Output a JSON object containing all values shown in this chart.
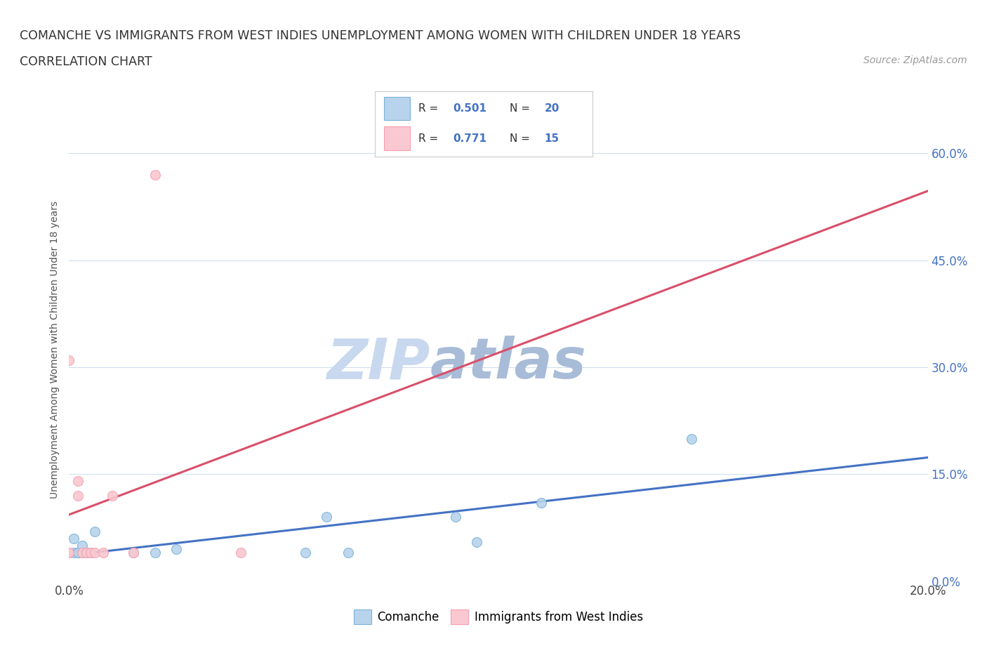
{
  "title_line1": "COMANCHE VS IMMIGRANTS FROM WEST INDIES UNEMPLOYMENT AMONG WOMEN WITH CHILDREN UNDER 18 YEARS",
  "title_line2": "CORRELATION CHART",
  "source_text": "Source: ZipAtlas.com",
  "ylabel": "Unemployment Among Women with Children Under 18 years",
  "xmin": 0.0,
  "xmax": 0.2,
  "ymin": 0.0,
  "ymax": 0.65,
  "yticks": [
    0.0,
    0.15,
    0.3,
    0.45,
    0.6
  ],
  "ytick_labels_right": [
    "0.0%",
    "15.0%",
    "30.0%",
    "45.0%",
    "60.0%"
  ],
  "xticks": [
    0.0,
    0.04,
    0.08,
    0.12,
    0.16,
    0.2
  ],
  "xtick_labels": [
    "0.0%",
    "",
    "",
    "",
    "",
    "20.0%"
  ],
  "blue_color": "#7ab3d9",
  "blue_fill": "#b8d3ec",
  "pink_color": "#f4a0b0",
  "pink_fill": "#fac8d0",
  "trendline_blue": "#4472c4",
  "trendline_pink": "#d94f6a",
  "trendline_pink_dash": "#cccccc",
  "grid_color": "#d0dff0",
  "watermark_color_zip": "#c8d8ee",
  "watermark_color_atlas": "#a8bcd8",
  "r_blue": 0.501,
  "n_blue": 20,
  "r_pink": 0.771,
  "n_pink": 15,
  "comanche_x": [
    0.0,
    0.001,
    0.001,
    0.002,
    0.002,
    0.003,
    0.003,
    0.004,
    0.005,
    0.006,
    0.015,
    0.02,
    0.025,
    0.055,
    0.06,
    0.065,
    0.09,
    0.095,
    0.11,
    0.145
  ],
  "comanche_y": [
    0.04,
    0.04,
    0.06,
    0.04,
    0.04,
    0.04,
    0.05,
    0.04,
    0.04,
    0.07,
    0.04,
    0.04,
    0.045,
    0.04,
    0.09,
    0.04,
    0.09,
    0.055,
    0.11,
    0.2
  ],
  "westindies_x": [
    0.0,
    0.0,
    0.0,
    0.0,
    0.002,
    0.002,
    0.003,
    0.004,
    0.005,
    0.006,
    0.008,
    0.01,
    0.015,
    0.02,
    0.04
  ],
  "westindies_y": [
    0.04,
    0.04,
    0.31,
    0.04,
    0.12,
    0.14,
    0.04,
    0.04,
    0.04,
    0.04,
    0.04,
    0.12,
    0.04,
    0.57,
    0.04
  ]
}
